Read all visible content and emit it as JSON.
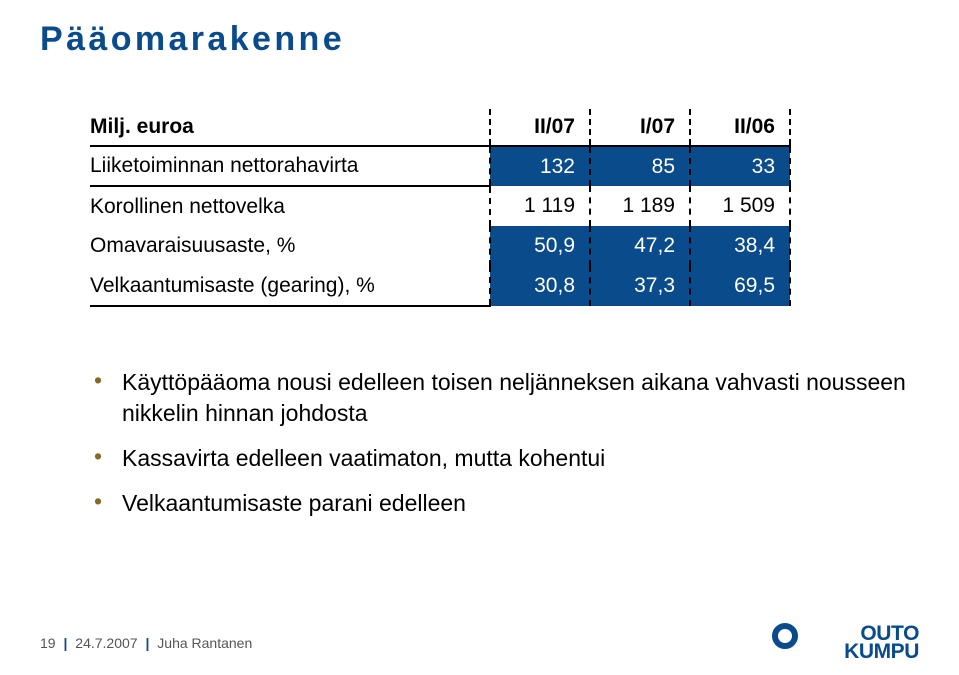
{
  "title": {
    "text": "Pääomarakenne",
    "color": "#0a4b8c",
    "fontsize": 34
  },
  "table": {
    "header_label": "Milj. euroa",
    "columns": [
      "II/07",
      "I/07",
      "II/06"
    ],
    "col_border_dash": "2px dashed #000",
    "rows": [
      {
        "label": "Liiketoiminnan nettorahavirta",
        "values": [
          "132",
          "85",
          "33"
        ],
        "highlight": true,
        "sep_above": false
      },
      {
        "label": "Korollinen nettovelka",
        "values": [
          "1 119",
          "1 189",
          "1 509"
        ],
        "highlight": false,
        "sep_above": true
      },
      {
        "label": "Omavaraisuusaste, %",
        "values": [
          "50,9",
          "47,2",
          "38,4"
        ],
        "highlight": true,
        "sep_above": false
      },
      {
        "label": "Velkaantumisaste (gearing), %",
        "values": [
          "30,8",
          "37,3",
          "69,5"
        ],
        "highlight": true,
        "sep_above": false
      }
    ],
    "highlight_bg": "#0a4b8c",
    "highlight_text": "#ffffff",
    "label_fontsize": 21
  },
  "bullets": {
    "color": "#846b24",
    "items": [
      "Käyttöpääoma nousi edelleen toisen neljänneksen aikana vahvasti nousseen nikkelin hinnan johdosta",
      "Kassavirta edelleen vaatimaton, mutta kohentui",
      "Velkaantumisaste parani edelleen"
    ]
  },
  "footer": {
    "page": "19",
    "date": "24.7.2007",
    "author": "Juha Rantanen",
    "logo_top": "OUTO",
    "logo_bottom": "KUMPU",
    "logo_color": "#0a4b8c",
    "logo_fontsize": 21
  }
}
